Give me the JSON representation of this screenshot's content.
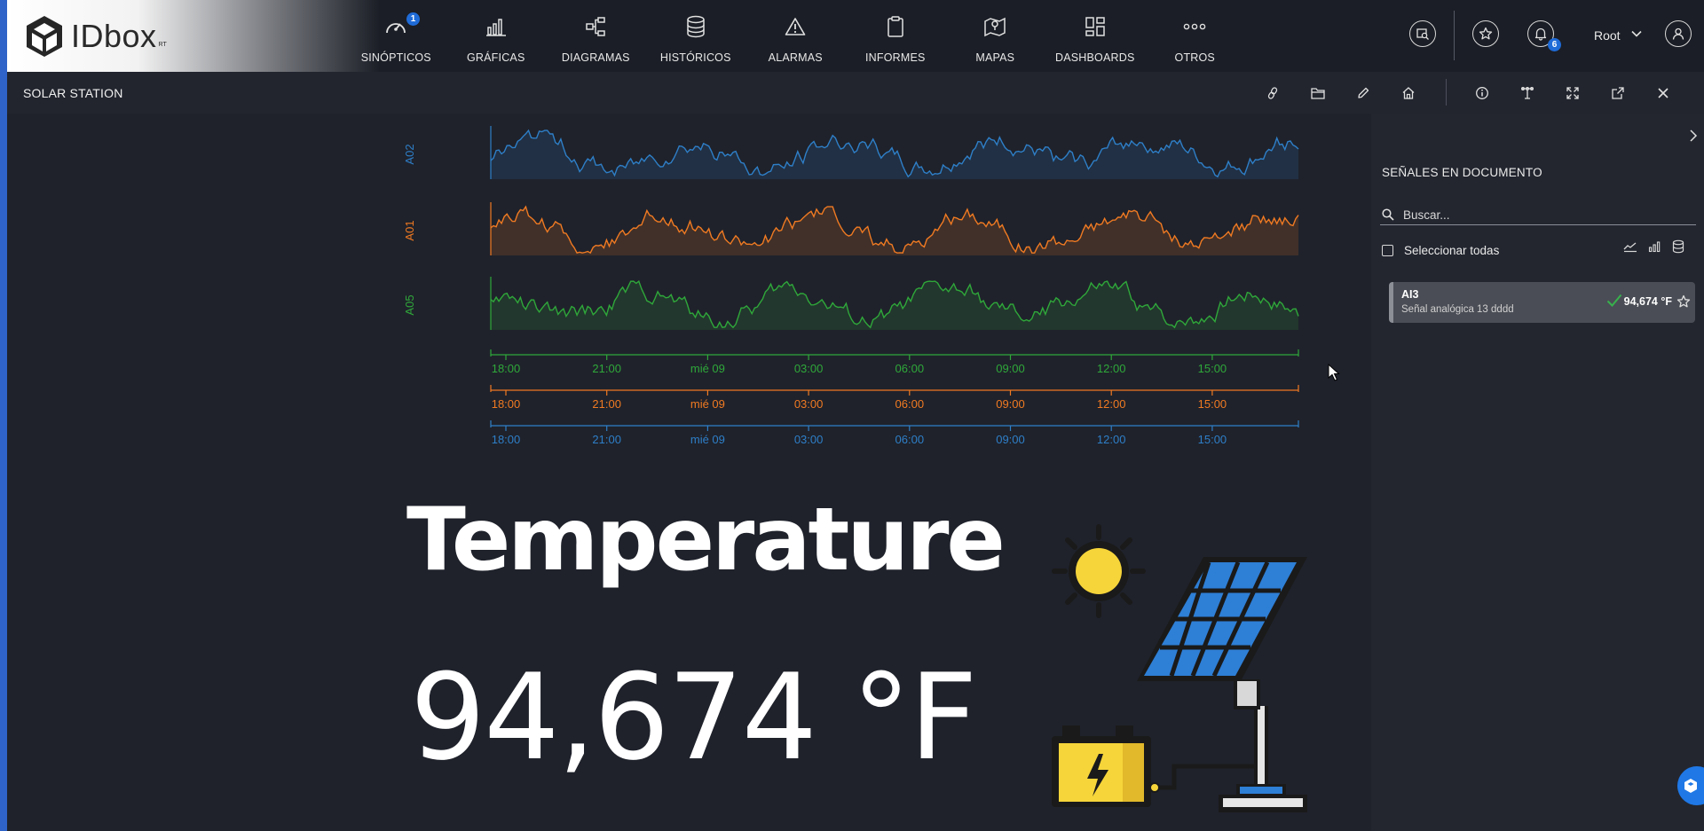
{
  "brand": {
    "name": "IDbox",
    "sup": "RT"
  },
  "nav": [
    {
      "label": "SINÓPTICOS",
      "icon": "gauge-icon",
      "badge": "1"
    },
    {
      "label": "GRÁFICAS",
      "icon": "bar-chart-icon"
    },
    {
      "label": "DIAGRAMAS",
      "icon": "hierarchy-icon"
    },
    {
      "label": "HISTÓRICOS",
      "icon": "database-icon"
    },
    {
      "label": "ALARMAS",
      "icon": "warning-icon"
    },
    {
      "label": "INFORMES",
      "icon": "clipboard-icon"
    },
    {
      "label": "MAPAS",
      "icon": "map-pin-icon"
    },
    {
      "label": "DASHBOARDS",
      "icon": "dashboard-grid-icon"
    },
    {
      "label": "OTROS",
      "icon": "more-dots-icon"
    }
  ],
  "header_tools": {
    "notifications_badge": "6",
    "user": "Root"
  },
  "document": {
    "title": "SOLAR STATION"
  },
  "charts": {
    "time_ticks": [
      "18:00",
      "21:00",
      "mié 09",
      "03:00",
      "06:00",
      "09:00",
      "12:00",
      "15:00"
    ],
    "colors": {
      "A02": "#2e7fc8",
      "A01": "#f07a22",
      "A05": "#2fa83a"
    }
  },
  "chart_data": [
    {
      "type": "area",
      "series": [
        {
          "name": "A02"
        }
      ],
      "x": [
        "18:00",
        "21:00",
        "mié 09",
        "03:00",
        "06:00",
        "09:00",
        "12:00",
        "15:00"
      ]
    },
    {
      "type": "area",
      "series": [
        {
          "name": "A01"
        }
      ],
      "x": [
        "18:00",
        "21:00",
        "mié 09",
        "03:00",
        "06:00",
        "09:00",
        "12:00",
        "15:00"
      ]
    },
    {
      "type": "area",
      "series": [
        {
          "name": "A05"
        }
      ],
      "x": [
        "18:00",
        "21:00",
        "mié 09",
        "03:00",
        "06:00",
        "09:00",
        "12:00",
        "15:00"
      ]
    }
  ],
  "display": {
    "title": "Temperature",
    "value": "94,674 °F"
  },
  "panel": {
    "title": "SEÑALES EN DOCUMENTO",
    "search_placeholder": "Buscar...",
    "select_all": "Seleccionar todas",
    "signals": [
      {
        "name": "AI3",
        "description": "Señal analógica 13 dddd",
        "value": "94,674 °F",
        "status_color": "#37b24d"
      }
    ]
  }
}
